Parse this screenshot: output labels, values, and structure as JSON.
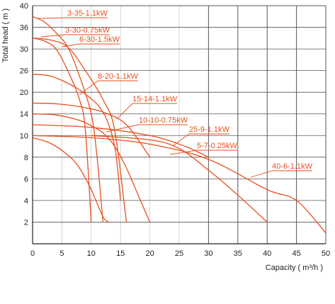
{
  "chart_data": {
    "type": "line",
    "title": "",
    "xlabel": "Capacity ( m³/h )",
    "ylabel": "Total head ( m )",
    "xlim": [
      0,
      50
    ],
    "ylim": [
      0,
      40
    ],
    "x_ticks": [
      0,
      5,
      10,
      15,
      20,
      25,
      30,
      35,
      40,
      45,
      50
    ],
    "y_ticks": [
      2,
      4,
      6,
      8,
      10,
      14,
      20,
      26,
      30,
      36,
      40
    ],
    "grid": true,
    "line_color": "#e8501e",
    "leader_color": "#e8501e",
    "axis_color": "#222222",
    "grid_color": "#555555",
    "series": [
      {
        "name": "3-35-1.1kW",
        "x": [
          0,
          2,
          4,
          6,
          8,
          10,
          11,
          12
        ],
        "y": [
          38,
          37,
          34.5,
          30.5,
          24.5,
          14,
          8,
          2
        ]
      },
      {
        "name": "3-30-0.75kW",
        "x": [
          0,
          2,
          4,
          6,
          8,
          9,
          10
        ],
        "y": [
          33,
          32.2,
          30,
          26,
          18,
          11,
          2
        ]
      },
      {
        "name": "6-30-1.5kW",
        "x": [
          0,
          3,
          6,
          9,
          12,
          14,
          16
        ],
        "y": [
          33,
          32.5,
          30.5,
          26,
          18,
          11,
          2
        ]
      },
      {
        "name": "8-20-1.1kW",
        "x": [
          0,
          3,
          6,
          9,
          12,
          14,
          15
        ],
        "y": [
          25,
          24.5,
          22.5,
          19.5,
          14.5,
          9,
          4
        ]
      },
      {
        "name": "15-14-1.1kW",
        "x": [
          0,
          4,
          8,
          12,
          16,
          20
        ],
        "y": [
          17,
          16.8,
          16,
          14.5,
          12,
          8
        ]
      },
      {
        "name": "10-10-0.75kW",
        "x": [
          0,
          4,
          8,
          10,
          12,
          14,
          16,
          18,
          20
        ],
        "y": [
          14,
          13.8,
          12.8,
          11.8,
          10.5,
          9,
          7,
          4.5,
          2
        ]
      },
      {
        "name": "25-9-1.1kW",
        "x": [
          0,
          10,
          20,
          26,
          30
        ],
        "y": [
          12,
          11.5,
          10,
          9,
          8
        ]
      },
      {
        "name": "5-7-0.25kW",
        "x": [
          0,
          3,
          6,
          8,
          10,
          12,
          13
        ],
        "y": [
          9.8,
          9.3,
          8.2,
          7,
          5,
          2.5,
          2
        ]
      },
      {
        "name": "40-6-1.1kW",
        "x": [
          0,
          10,
          20,
          30,
          40,
          45,
          50
        ],
        "y": [
          10,
          9.8,
          9.2,
          7.8,
          5,
          4,
          1
        ]
      },
      {
        "name": "",
        "x": [
          10,
          20,
          25,
          30,
          35,
          40
        ],
        "y": [
          10,
          9.6,
          8.8,
          6.8,
          4.5,
          2
        ]
      }
    ],
    "annotations": [
      {
        "text": "3-35-1.1kW",
        "series": "3-35-1.1kW"
      },
      {
        "text": "3-30-0.75kW",
        "series": "3-30-0.75kW"
      },
      {
        "text": "6-30-1.5kW",
        "series": "6-30-1.5kW"
      },
      {
        "text": "8-20-1.1kW",
        "series": "8-20-1.1kW"
      },
      {
        "text": "15-14-1.1kW",
        "series": "15-14-1.1kW"
      },
      {
        "text": "10-10-0.75kW",
        "series": "10-10-0.75kW"
      },
      {
        "text": "25-9-1.1kW",
        "series": "25-9-1.1kW"
      },
      {
        "text": "5-7-0.25kW",
        "series": "5-7-0.25kW"
      },
      {
        "text": "40-6-1.1kW",
        "series": "40-6-1.1kW"
      }
    ]
  }
}
